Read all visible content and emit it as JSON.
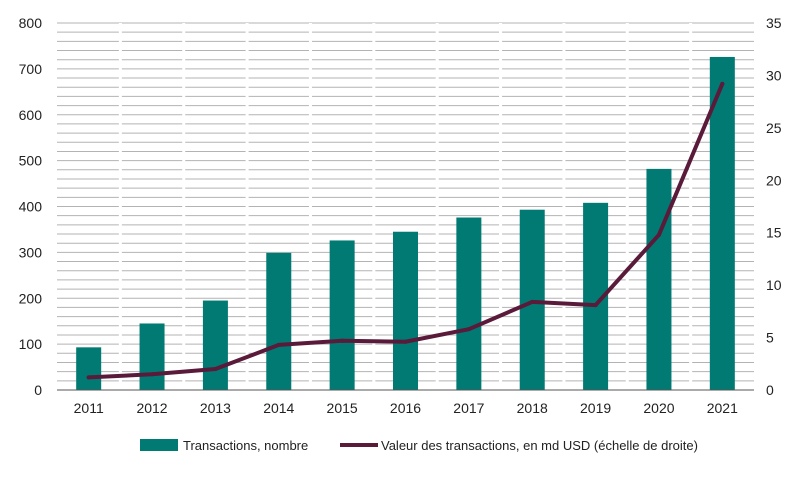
{
  "chart_data": {
    "type": "bar",
    "categories": [
      "2011",
      "2012",
      "2013",
      "2014",
      "2015",
      "2016",
      "2017",
      "2018",
      "2019",
      "2020",
      "2021"
    ],
    "series": [
      {
        "name": "Transactions, nombre",
        "type": "bar",
        "axis": "left",
        "color": "#007a73",
        "values": [
          93,
          145,
          195,
          299,
          326,
          345,
          376,
          393,
          408,
          482,
          726
        ]
      },
      {
        "name": "Valeur des transactions, en md USD (échelle de droite)",
        "type": "line",
        "axis": "right",
        "color": "#5a1a3a",
        "values": [
          1.2,
          1.5,
          2.0,
          4.3,
          4.7,
          4.6,
          5.8,
          8.4,
          8.1,
          14.8,
          29.2
        ]
      }
    ],
    "ylim": [
      0,
      800
    ],
    "yticks": [
      "0",
      "100",
      "200",
      "300",
      "400",
      "500",
      "600",
      "700",
      "800"
    ],
    "y2lim": [
      0,
      35
    ],
    "y2ticks": [
      "0",
      "5",
      "10",
      "15",
      "20",
      "25",
      "30",
      "35"
    ],
    "grid": true,
    "legend_position": "bottom"
  }
}
